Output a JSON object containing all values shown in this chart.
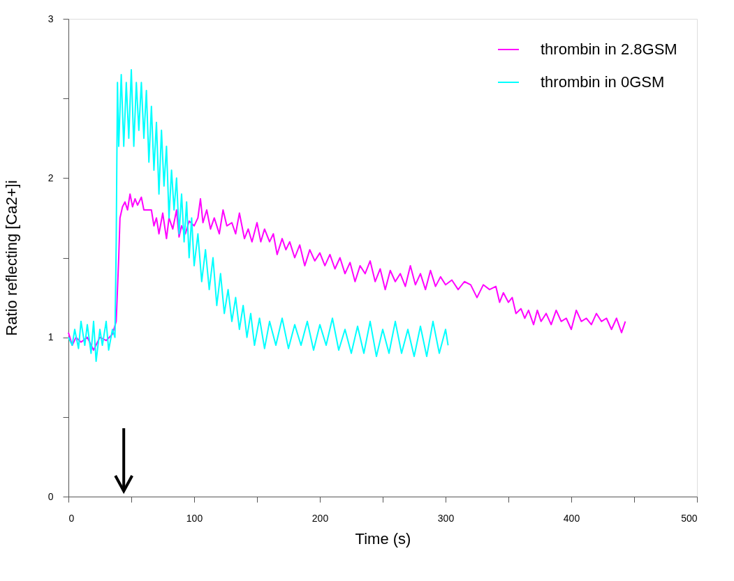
{
  "chart_data": {
    "type": "line",
    "xlabel": "Time (s)",
    "ylabel": "Ratio reflecting [Ca2+]i",
    "xlim": [
      0,
      500
    ],
    "ylim": [
      0,
      3
    ],
    "xticks": [
      0,
      {
        "value": 50,
        "label": null
      },
      100,
      {
        "value": 150,
        "label": null
      },
      200,
      {
        "value": 250,
        "label": null
      },
      300,
      {
        "value": 350,
        "label": null
      },
      400,
      {
        "value": 450,
        "label": null
      },
      500
    ],
    "yticks": [
      0,
      {
        "value": 0.5,
        "label": null
      },
      1,
      {
        "value": 1.5,
        "label": null
      },
      2,
      {
        "value": 2.5,
        "label": null
      },
      3
    ],
    "grid": false,
    "legend": "top right",
    "marker": "none",
    "line_style": "solid",
    "series": [
      {
        "name": "thrombin in 2.8GSM",
        "color": "#ff00ff",
        "x": [
          0,
          3,
          6,
          10,
          15,
          20,
          25,
          30,
          35,
          38,
          40,
          41,
          43,
          45,
          47,
          49,
          51,
          53,
          55,
          58,
          60,
          63,
          66,
          68,
          70,
          72,
          75,
          78,
          80,
          83,
          86,
          88,
          90,
          93,
          96,
          100,
          103,
          105,
          107,
          110,
          113,
          116,
          120,
          123,
          126,
          130,
          133,
          136,
          140,
          143,
          146,
          150,
          153,
          156,
          160,
          163,
          166,
          170,
          173,
          176,
          180,
          184,
          188,
          192,
          196,
          200,
          204,
          208,
          212,
          216,
          220,
          224,
          228,
          232,
          236,
          240,
          244,
          248,
          252,
          256,
          260,
          264,
          268,
          272,
          276,
          280,
          284,
          288,
          292,
          296,
          300,
          305,
          310,
          315,
          320,
          325,
          330,
          335,
          340,
          343,
          346,
          350,
          353,
          356,
          360,
          363,
          366,
          370,
          373,
          376,
          380,
          384,
          388,
          392,
          396,
          400,
          404,
          408,
          412,
          416,
          420,
          424,
          428,
          432,
          436,
          440,
          443
        ],
        "values": [
          1.03,
          0.95,
          1.0,
          0.97,
          1.0,
          0.92,
          1.0,
          0.98,
          1.02,
          1.1,
          1.5,
          1.75,
          1.82,
          1.85,
          1.8,
          1.9,
          1.82,
          1.87,
          1.83,
          1.88,
          1.8,
          1.8,
          1.8,
          1.7,
          1.75,
          1.65,
          1.78,
          1.62,
          1.75,
          1.68,
          1.8,
          1.63,
          1.7,
          1.65,
          1.73,
          1.7,
          1.75,
          1.87,
          1.72,
          1.8,
          1.68,
          1.75,
          1.65,
          1.8,
          1.7,
          1.72,
          1.65,
          1.78,
          1.62,
          1.68,
          1.6,
          1.72,
          1.6,
          1.68,
          1.6,
          1.65,
          1.52,
          1.62,
          1.55,
          1.6,
          1.5,
          1.58,
          1.45,
          1.55,
          1.48,
          1.53,
          1.45,
          1.52,
          1.43,
          1.5,
          1.4,
          1.47,
          1.35,
          1.45,
          1.4,
          1.48,
          1.35,
          1.43,
          1.3,
          1.42,
          1.35,
          1.4,
          1.32,
          1.45,
          1.33,
          1.4,
          1.3,
          1.42,
          1.32,
          1.38,
          1.33,
          1.36,
          1.3,
          1.35,
          1.33,
          1.25,
          1.33,
          1.3,
          1.32,
          1.22,
          1.28,
          1.22,
          1.25,
          1.15,
          1.18,
          1.12,
          1.17,
          1.08,
          1.17,
          1.1,
          1.15,
          1.08,
          1.17,
          1.1,
          1.12,
          1.05,
          1.17,
          1.1,
          1.12,
          1.08,
          1.15,
          1.1,
          1.12,
          1.05,
          1.12,
          1.03,
          1.1
        ]
      },
      {
        "name": "thrombin in 0GSM",
        "color": "#00ffff",
        "x": [
          0,
          3,
          5,
          8,
          10,
          13,
          15,
          18,
          20,
          22,
          25,
          27,
          30,
          32,
          35,
          37,
          38,
          39,
          40,
          42,
          44,
          46,
          48,
          50,
          52,
          54,
          56,
          58,
          60,
          62,
          64,
          66,
          68,
          70,
          72,
          74,
          76,
          78,
          80,
          82,
          84,
          86,
          88,
          90,
          92,
          94,
          96,
          98,
          100,
          103,
          106,
          109,
          112,
          115,
          118,
          121,
          124,
          127,
          130,
          133,
          136,
          139,
          142,
          145,
          148,
          152,
          156,
          160,
          165,
          170,
          175,
          180,
          185,
          190,
          195,
          200,
          205,
          210,
          215,
          220,
          225,
          230,
          235,
          240,
          245,
          250,
          255,
          260,
          265,
          270,
          275,
          280,
          285,
          290,
          295,
          300,
          302
        ],
        "values": [
          1.0,
          0.95,
          1.05,
          0.93,
          1.1,
          0.95,
          1.08,
          0.9,
          1.1,
          0.85,
          1.05,
          0.95,
          1.1,
          0.92,
          1.05,
          1.0,
          1.6,
          2.6,
          2.2,
          2.65,
          2.2,
          2.6,
          2.25,
          2.68,
          2.2,
          2.6,
          2.3,
          2.6,
          2.25,
          2.55,
          2.1,
          2.45,
          2.05,
          2.35,
          1.9,
          2.3,
          1.95,
          2.2,
          1.75,
          2.05,
          1.8,
          2.0,
          1.65,
          1.9,
          1.6,
          1.85,
          1.5,
          1.75,
          1.45,
          1.65,
          1.35,
          1.55,
          1.3,
          1.5,
          1.2,
          1.4,
          1.15,
          1.3,
          1.1,
          1.25,
          1.05,
          1.2,
          1.0,
          1.15,
          0.95,
          1.12,
          0.93,
          1.1,
          0.95,
          1.12,
          0.93,
          1.08,
          0.95,
          1.1,
          0.92,
          1.08,
          0.95,
          1.12,
          0.92,
          1.05,
          0.9,
          1.07,
          0.9,
          1.1,
          0.88,
          1.05,
          0.9,
          1.1,
          0.9,
          1.05,
          0.88,
          1.07,
          0.88,
          1.1,
          0.9,
          1.05,
          0.95
        ]
      }
    ]
  }
}
